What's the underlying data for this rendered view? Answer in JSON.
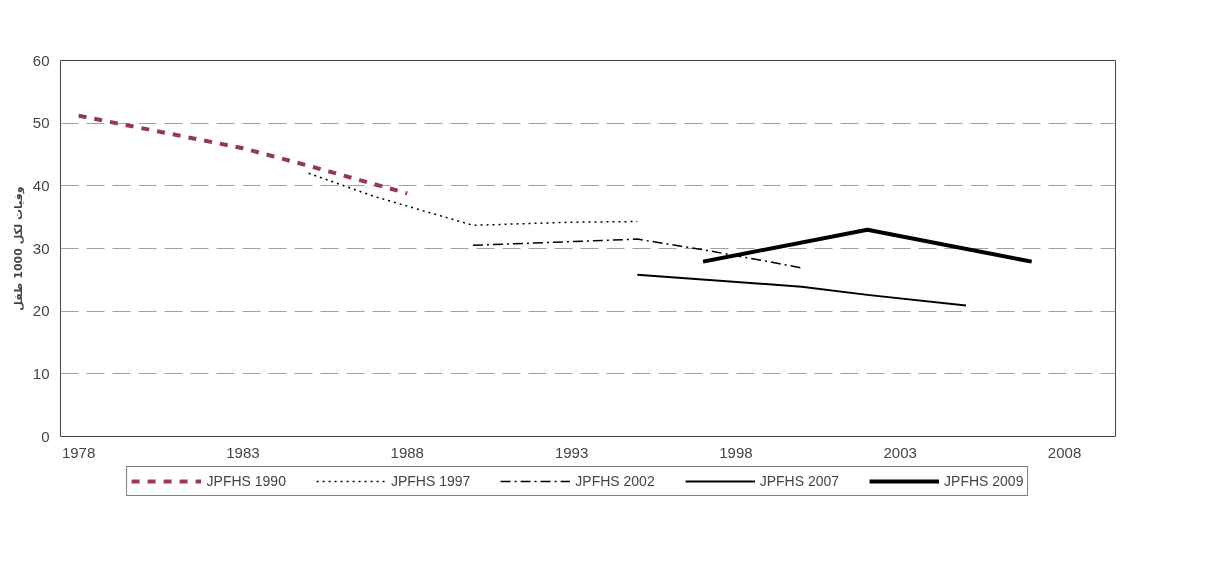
{
  "chart_data": {
    "type": "line",
    "ylabel": "وفيات لكل 1000 طفل",
    "xlim": [
      1977.45,
      2009.55
    ],
    "xticks": [
      1978,
      1983,
      1988,
      1993,
      1998,
      2003,
      2008
    ],
    "ylim": [
      0,
      60
    ],
    "yticks": [
      0,
      10,
      20,
      30,
      40,
      50,
      60
    ],
    "grid": "y",
    "legend": "bottom",
    "marker": "none",
    "series": [
      {
        "name": "JPFHS 1990",
        "color": "#993366",
        "line_style": "dashed",
        "x": [
          1978,
          1983,
          1985,
          1988
        ],
        "values": [
          51.2,
          46.0,
          43.2,
          38.8
        ]
      },
      {
        "name": "JPFHS 1997",
        "color": "#000000",
        "line_style": "dotted",
        "x": [
          1985,
          1987,
          1990,
          1993,
          1995
        ],
        "values": [
          42.0,
          38.3,
          33.7,
          34.2,
          34.3
        ]
      },
      {
        "name": "JPFHS 2002",
        "color": "#000000",
        "line_style": "dashed",
        "x": [
          1990,
          1993,
          1995,
          1997,
          1999,
          2000
        ],
        "values": [
          30.5,
          31.1,
          31.5,
          29.8,
          27.9,
          26.9
        ]
      },
      {
        "name": "JPFHS 2007",
        "color": "#000000",
        "line_style": "solid",
        "x": [
          1995,
          2000,
          2002,
          2005
        ],
        "values": [
          25.8,
          23.9,
          22.6,
          20.9
        ]
      },
      {
        "name": "JPFHS 2009",
        "color": "#000000",
        "line_style": "solid",
        "x": [
          1997,
          2002,
          2007
        ],
        "values": [
          27.9,
          33.0,
          27.9
        ]
      }
    ]
  }
}
